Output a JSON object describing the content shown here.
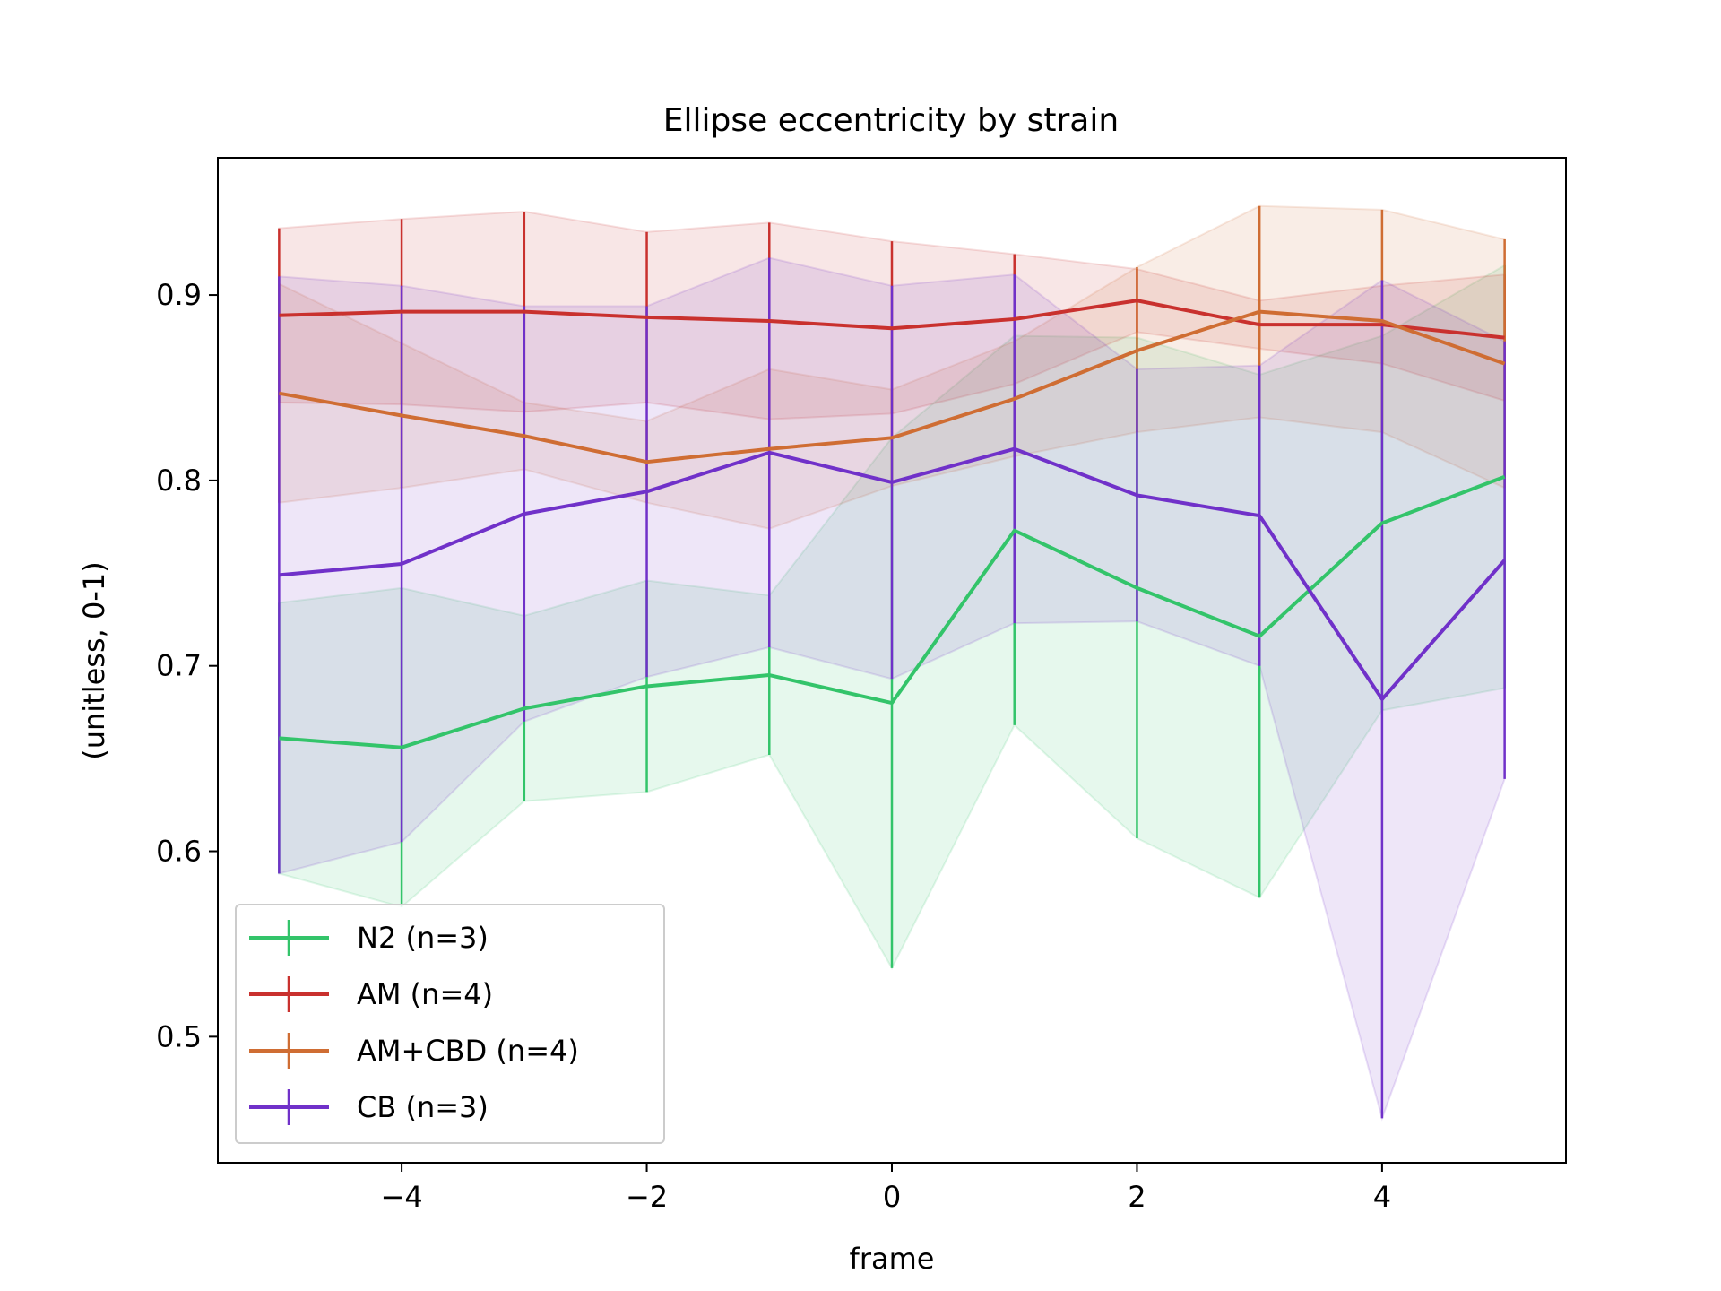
{
  "chart_data": {
    "type": "line",
    "title": "Ellipse eccentricity by strain",
    "xlabel": "frame",
    "ylabel": "(unitless, 0-1)",
    "x": [
      -5,
      -4,
      -3,
      -2,
      -1,
      0,
      1,
      2,
      3,
      4,
      5
    ],
    "xlim": [
      -5.5,
      5.5
    ],
    "ylim": [
      0.432,
      0.974
    ],
    "xticks": [
      -4,
      -2,
      0,
      2,
      4
    ],
    "xtick_labels": [
      "−4",
      "−2",
      "0",
      "2",
      "4"
    ],
    "yticks": [
      0.5,
      0.6,
      0.7,
      0.8,
      0.9
    ],
    "ytick_labels": [
      "0.5",
      "0.6",
      "0.7",
      "0.8",
      "0.9"
    ],
    "grid": false,
    "legend_position": "lower-left",
    "series": [
      {
        "name": "N2 (n=3)",
        "color": "#33c46a",
        "values": [
          0.661,
          0.656,
          0.677,
          0.689,
          0.695,
          0.68,
          0.773,
          0.742,
          0.716,
          0.777,
          0.802
        ],
        "lower": [
          0.588,
          0.57,
          0.627,
          0.632,
          0.652,
          0.537,
          0.668,
          0.607,
          0.575,
          0.676,
          0.688
        ],
        "upper": [
          0.734,
          0.742,
          0.727,
          0.746,
          0.738,
          0.823,
          0.878,
          0.877,
          0.857,
          0.878,
          0.916
        ]
      },
      {
        "name": "AM (n=4)",
        "color": "#c9312e",
        "values": [
          0.889,
          0.891,
          0.891,
          0.888,
          0.886,
          0.882,
          0.887,
          0.897,
          0.884,
          0.884,
          0.877
        ],
        "lower": [
          0.842,
          0.841,
          0.837,
          0.842,
          0.833,
          0.836,
          0.852,
          0.88,
          0.871,
          0.863,
          0.843
        ],
        "upper": [
          0.936,
          0.941,
          0.945,
          0.934,
          0.939,
          0.929,
          0.922,
          0.914,
          0.897,
          0.905,
          0.911
        ]
      },
      {
        "name": "AM+CBD (n=4)",
        "color": "#cf6d33",
        "values": [
          0.847,
          0.835,
          0.824,
          0.81,
          0.817,
          0.823,
          0.844,
          0.87,
          0.891,
          0.886,
          0.863
        ],
        "lower": [
          0.788,
          0.796,
          0.806,
          0.788,
          0.774,
          0.797,
          0.813,
          0.826,
          0.834,
          0.826,
          0.796
        ],
        "upper": [
          0.906,
          0.874,
          0.842,
          0.832,
          0.86,
          0.849,
          0.875,
          0.915,
          0.948,
          0.946,
          0.93
        ]
      },
      {
        "name": "CB (n=3)",
        "color": "#7031c9",
        "values": [
          0.749,
          0.755,
          0.782,
          0.794,
          0.815,
          0.799,
          0.817,
          0.792,
          0.781,
          0.682,
          0.757
        ],
        "lower": [
          0.588,
          0.605,
          0.67,
          0.694,
          0.71,
          0.693,
          0.723,
          0.724,
          0.7,
          0.456,
          0.639
        ],
        "upper": [
          0.91,
          0.905,
          0.894,
          0.894,
          0.92,
          0.905,
          0.911,
          0.86,
          0.862,
          0.908,
          0.875
        ]
      }
    ]
  }
}
